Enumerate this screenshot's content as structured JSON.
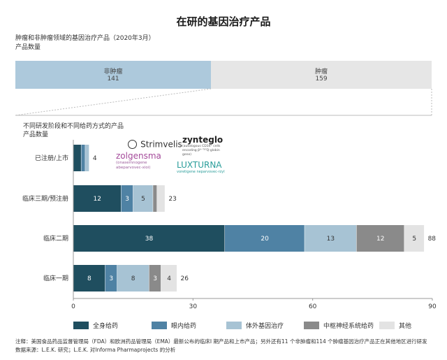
{
  "title": "在研的基因治疗产品",
  "top_chart": {
    "subtitle": "肿瘤和非肿瘤领域的基因治疗产品（2020年3月）",
    "ylabel": "产品数量",
    "segments": [
      {
        "label": "非肿瘤",
        "value": 141,
        "color": "#adc9dc"
      },
      {
        "label": "肿瘤",
        "value": 159,
        "color": "#e6e6e6"
      }
    ]
  },
  "chart_data": {
    "type": "bar",
    "orientation": "horizontal-stacked",
    "title": "不同研发阶段和不同给药方式的产品",
    "ylabel": "产品数量",
    "categories": [
      "已注册/上市",
      "临床三期/预注册",
      "临床二期",
      "临床一期"
    ],
    "totals": [
      4,
      23,
      88,
      26
    ],
    "series": [
      {
        "name": "全身给药",
        "color": "#1f4e5f",
        "values": [
          2,
          12,
          38,
          8
        ]
      },
      {
        "name": "眼内给药",
        "color": "#4f82a4",
        "values": [
          1,
          3,
          20,
          3
        ]
      },
      {
        "name": "体外基因治疗",
        "color": "#a7c3d4",
        "values": [
          1,
          5,
          13,
          8
        ]
      },
      {
        "name": "中枢神经系统给药",
        "color": "#8a8a8a",
        "values": [
          0,
          1,
          12,
          3
        ]
      },
      {
        "name": "其他",
        "color": "#e3e3e3",
        "values": [
          0,
          2,
          5,
          4
        ]
      }
    ],
    "segment_labels": [
      [
        "",
        "",
        "",
        "",
        ""
      ],
      [
        "12",
        "3",
        "5",
        "",
        ""
      ],
      [
        "38",
        "20",
        "13",
        "12",
        "5"
      ],
      [
        "8",
        "3",
        "8",
        "3",
        "4"
      ]
    ],
    "xlim": [
      0,
      90
    ],
    "xticks": [
      0,
      30,
      60,
      90
    ],
    "legend_position": "bottom"
  },
  "logos": {
    "strimvelis": "Strimvelis",
    "zynteglo": "zynteglo",
    "zynteglo_sub": "(autologous CD34⁺ cells encoding βᴬ⁻ᵀ⁸⁷Q-globin gene)",
    "zolgensma": "zolgensma",
    "zolgensma_sub": "(onasemnogene abeparvovec-xioi)",
    "luxturna": "LUXTURNA",
    "luxturna_sub": "voretigene neparvovec-rzyl"
  },
  "note_line1": "注释：美国食品药品监督管理局（FDA）和欧洲药品管理局（EMA）最新公布的临床I 期产品和上市产品；另外还有11 个非肿瘤和114 个肿瘤基因治疗产品正在其他地区进行研发",
  "note_line2": "数据来源：L.E.K. 研究；L.E.K. 对Informa Pharmaprojects 的分析",
  "colors": {
    "axis": "#999999",
    "connector": "#bbbbbb"
  }
}
